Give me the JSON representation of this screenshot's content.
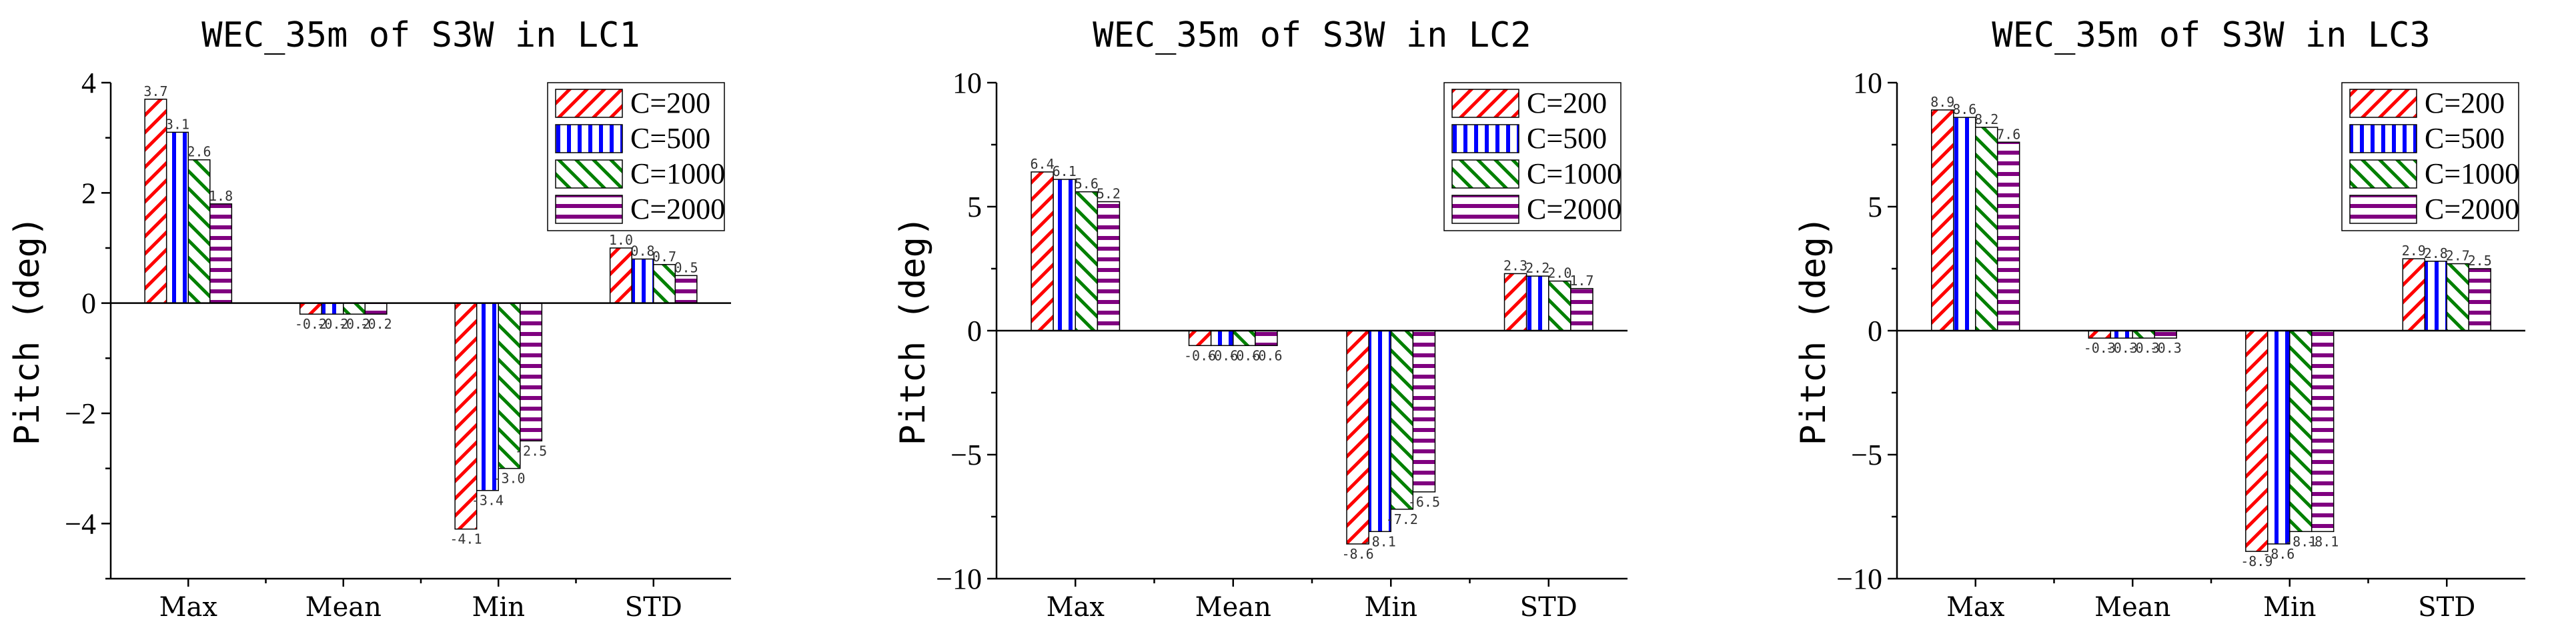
{
  "chart_data": [
    {
      "type": "bar",
      "title": "WEC_35m of S3W in LC1",
      "ylabel": "Pitch (deg)",
      "xlabel": "",
      "categories": [
        "Max",
        "Mean",
        "Min",
        "STD"
      ],
      "ylim": [
        -5,
        4
      ],
      "yticks": [
        -4,
        -2,
        0,
        2,
        4
      ],
      "legend": "top-right",
      "series": [
        {
          "name": "C=200",
          "values": [
            3.7,
            -0.2,
            -4.1,
            1.0
          ],
          "labels": [
            "3.7",
            "-0.2",
            "-4.1",
            "1.0"
          ],
          "color": "#ff0000"
        },
        {
          "name": "C=500",
          "values": [
            3.1,
            -0.2,
            -3.4,
            0.8
          ],
          "labels": [
            "3.1",
            "-0.2",
            "-3.4",
            "0.8"
          ],
          "color": "#0000ff"
        },
        {
          "name": "C=1000",
          "values": [
            2.6,
            -0.2,
            -3.0,
            0.7
          ],
          "labels": [
            "2.6",
            "-0.2",
            "-3.0",
            "0.7"
          ],
          "color": "#008000"
        },
        {
          "name": "C=2000",
          "values": [
            1.8,
            -0.2,
            -2.5,
            0.5
          ],
          "labels": [
            "1.8",
            "-0.2",
            "-2.5",
            "0.5"
          ],
          "color": "#800080"
        }
      ]
    },
    {
      "type": "bar",
      "title": "WEC_35m of S3W in LC2",
      "ylabel": "Pitch (deg)",
      "xlabel": "",
      "categories": [
        "Max",
        "Mean",
        "Min",
        "STD"
      ],
      "ylim": [
        -10,
        10
      ],
      "yticks": [
        -10,
        -5,
        0,
        5,
        10
      ],
      "legend": "top-right",
      "series": [
        {
          "name": "C=200",
          "values": [
            6.4,
            -0.6,
            -8.6,
            2.3
          ],
          "labels": [
            "6.4",
            "-0.6",
            "-8.6",
            "2.3"
          ],
          "color": "#ff0000"
        },
        {
          "name": "C=500",
          "values": [
            6.1,
            -0.6,
            -8.1,
            2.2
          ],
          "labels": [
            "6.1",
            "-0.6",
            "-8.1",
            "2.2"
          ],
          "color": "#0000ff"
        },
        {
          "name": "C=1000",
          "values": [
            5.6,
            -0.6,
            -7.2,
            2.0
          ],
          "labels": [
            "5.6",
            "-0.6",
            "-7.2",
            "2.0"
          ],
          "color": "#008000"
        },
        {
          "name": "C=2000",
          "values": [
            5.2,
            -0.6,
            -6.5,
            1.7
          ],
          "labels": [
            "5.2",
            "-0.6",
            "-6.5",
            "1.7"
          ],
          "color": "#800080"
        }
      ]
    },
    {
      "type": "bar",
      "title": "WEC_35m of S3W in LC3",
      "ylabel": "Pitch (deg)",
      "xlabel": "",
      "categories": [
        "Max",
        "Mean",
        "Min",
        "STD"
      ],
      "ylim": [
        -10,
        10
      ],
      "yticks": [
        -10,
        -5,
        0,
        5,
        10
      ],
      "legend": "top-right",
      "series": [
        {
          "name": "C=200",
          "values": [
            8.9,
            -0.3,
            -8.9,
            2.9
          ],
          "labels": [
            "8.9",
            "-0.3",
            "-8.9",
            "2.9"
          ],
          "color": "#ff0000"
        },
        {
          "name": "C=500",
          "values": [
            8.6,
            -0.3,
            -8.6,
            2.8
          ],
          "labels": [
            "8.6",
            "-0.3",
            "-8.6",
            "2.8"
          ],
          "color": "#0000ff"
        },
        {
          "name": "C=1000",
          "values": [
            8.2,
            -0.3,
            -8.1,
            2.7
          ],
          "labels": [
            "8.2",
            "-0.3",
            "-8.1",
            "2.7"
          ],
          "color": "#008000"
        },
        {
          "name": "C=2000",
          "values": [
            7.6,
            -0.3,
            -8.1,
            2.5
          ],
          "labels": [
            "7.6",
            "-0.3",
            "-8.1",
            "2.5"
          ],
          "color": "#800080"
        }
      ]
    }
  ]
}
